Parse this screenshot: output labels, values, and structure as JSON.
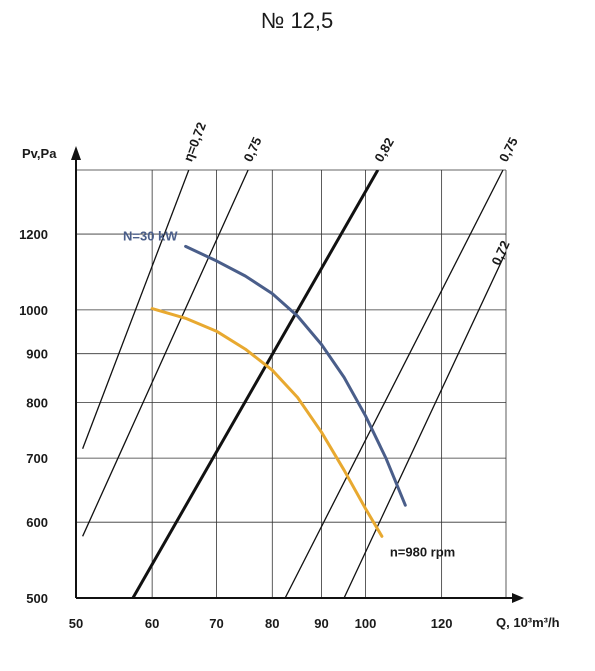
{
  "chart_data": {
    "type": "line",
    "title": "№ 12,5",
    "xlabel": "Q, 10³m³/h",
    "ylabel": "Pv,Pa",
    "x_scale": "log",
    "y_scale": "log",
    "xlim": [
      50,
      140
    ],
    "ylim": [
      500,
      1400
    ],
    "x_ticks": [
      "50",
      "60",
      "70",
      "80",
      "90",
      "100",
      "120"
    ],
    "x_tick_values": [
      50,
      60,
      70,
      80,
      90,
      100,
      120
    ],
    "y_ticks": [
      "500",
      "600",
      "700",
      "800",
      "900",
      "1000",
      "1200"
    ],
    "y_tick_values": [
      500,
      600,
      700,
      800,
      900,
      1000,
      1200
    ],
    "grid": true,
    "colors": {
      "power": "#4a5e8a",
      "fan": "#e8a930",
      "efficiency": "#111111",
      "grid": "#333333"
    },
    "series": [
      {
        "name": "N=30 kW",
        "color": "#4a5e8a",
        "x": [
          65,
          70,
          75,
          80,
          85,
          90,
          95,
          100,
          105,
          110
        ],
        "y": [
          1165,
          1125,
          1085,
          1040,
          985,
          920,
          850,
          775,
          700,
          625
        ]
      },
      {
        "name": "n=980 rpm",
        "color": "#e8a930",
        "x": [
          60,
          65,
          70,
          75,
          80,
          85,
          90,
          95,
          100,
          104
        ],
        "y": [
          1003,
          980,
          950,
          910,
          865,
          810,
          745,
          680,
          620,
          580
        ]
      }
    ],
    "efficiency_lines": [
      {
        "label": "η=0,72",
        "side": "left",
        "bold": false,
        "x": [
          50.8,
          65.5
        ],
        "y": [
          716,
          1400
        ]
      },
      {
        "label": "0,75",
        "side": "left",
        "bold": false,
        "x": [
          50.8,
          75.5
        ],
        "y": [
          580,
          1400
        ]
      },
      {
        "label": "0,82",
        "side": "center",
        "bold": true,
        "x": [
          57.3,
          103.0
        ],
        "y": [
          500,
          1400
        ]
      },
      {
        "label": "0,75",
        "side": "right",
        "bold": false,
        "x": [
          82.5,
          139.0
        ],
        "y": [
          500,
          1400
        ]
      },
      {
        "label": "0,72",
        "side": "right",
        "bold": false,
        "x": [
          95.0,
          140.0
        ],
        "y": [
          500,
          1150
        ]
      }
    ]
  }
}
